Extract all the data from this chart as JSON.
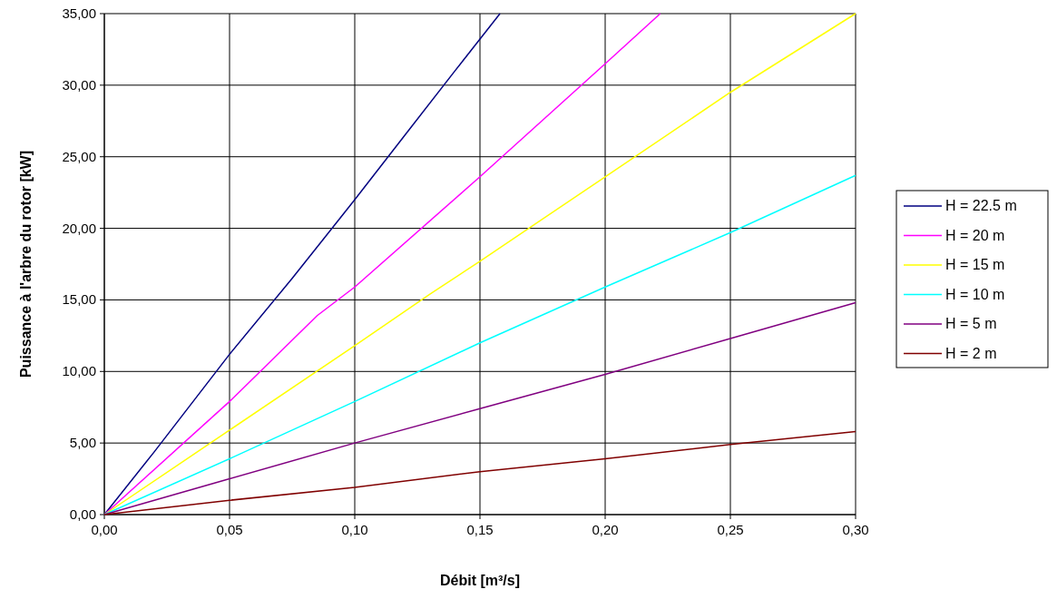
{
  "chart_data": {
    "type": "line",
    "xlabel": "Débit [m³/s]",
    "ylabel": "Puissance à l'arbre du rotor [kW]",
    "xlim": [
      0,
      0.3
    ],
    "xticks": [
      {
        "value": 0,
        "label": "0,00"
      },
      {
        "value": 0.05,
        "label": "0,05"
      },
      {
        "value": 0.1,
        "label": "0,10"
      },
      {
        "value": 0.15,
        "label": "0,15"
      },
      {
        "value": 0.2,
        "label": "0,20"
      },
      {
        "value": 0.25,
        "label": "0,25"
      },
      {
        "value": 0.3,
        "label": "0,30"
      }
    ],
    "ylim": [
      0,
      35
    ],
    "yticks": [
      {
        "value": 0,
        "label": "0,00"
      },
      {
        "value": 5,
        "label": "5,00"
      },
      {
        "value": 10,
        "label": "10,00"
      },
      {
        "value": 15,
        "label": "15,00"
      },
      {
        "value": 20,
        "label": "20,00"
      },
      {
        "value": 25,
        "label": "25,00"
      },
      {
        "value": 30,
        "label": "30,00"
      },
      {
        "value": 35,
        "label": "35,00"
      }
    ],
    "grid": true,
    "legend": "right",
    "marker": "none",
    "line_style": "solid",
    "series": [
      {
        "name": "H = 22.5 m",
        "color": "#000080",
        "x": [
          0,
          0.02,
          0.05,
          0.075,
          0.09,
          0.1,
          0.12,
          0.14,
          0.158
        ],
        "values": [
          0,
          4.4,
          11.2,
          16.5,
          19.8,
          22,
          26.5,
          31,
          35
        ]
      },
      {
        "name": "H = 20 m",
        "color": "#ff00ff",
        "x": [
          0,
          0.05,
          0.085,
          0.1,
          0.15,
          0.2,
          0.222
        ],
        "values": [
          0,
          7.9,
          13.9,
          15.9,
          23.6,
          31.5,
          35
        ]
      },
      {
        "name": "H = 15 m",
        "color": "#ffff00",
        "x": [
          0,
          0.05,
          0.1,
          0.13,
          0.15,
          0.2,
          0.25,
          0.3
        ],
        "values": [
          0,
          5.9,
          11.8,
          15.4,
          17.7,
          23.6,
          29.5,
          35
        ]
      },
      {
        "name": "H = 10 m",
        "color": "#00ffff",
        "x": [
          0,
          0.05,
          0.1,
          0.15,
          0.2,
          0.25,
          0.3
        ],
        "values": [
          0,
          3.9,
          7.9,
          12,
          15.9,
          19.7,
          23.7
        ]
      },
      {
        "name": "H = 5 m",
        "color": "#800080",
        "x": [
          0,
          0.05,
          0.1,
          0.15,
          0.2,
          0.25,
          0.3
        ],
        "values": [
          0,
          2.5,
          5,
          7.4,
          9.8,
          12.3,
          14.8
        ]
      },
      {
        "name": "H = 2 m",
        "color": "#800000",
        "x": [
          0,
          0.05,
          0.1,
          0.15,
          0.2,
          0.25,
          0.3
        ],
        "values": [
          0,
          1,
          1.9,
          3,
          3.9,
          4.9,
          5.8
        ]
      }
    ]
  }
}
